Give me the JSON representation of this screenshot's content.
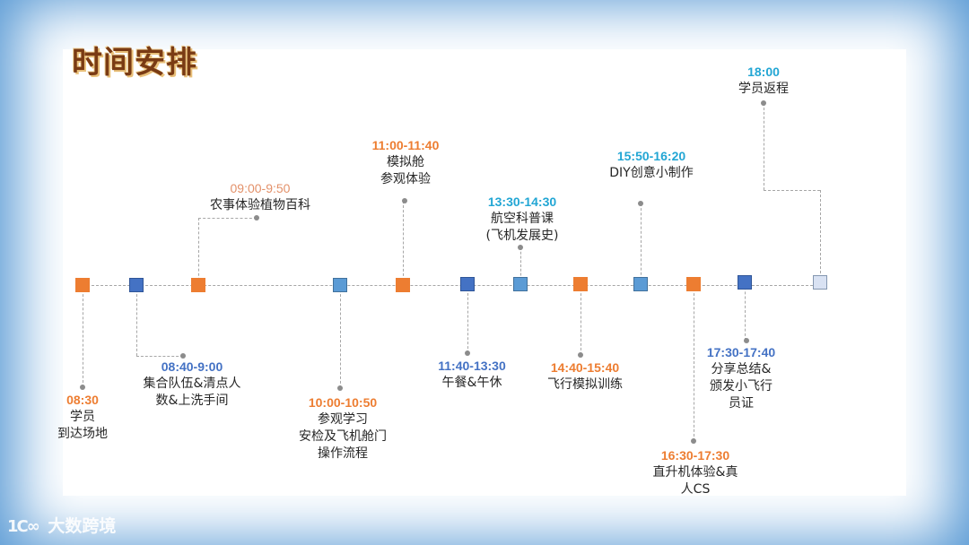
{
  "title": "时间安排",
  "watermark": {
    "mark": "1C∞",
    "text": "大数跨境"
  },
  "colors": {
    "orange": "#ed7d31",
    "dark_blue": "#4472c4",
    "light_blue": "#5b9bd5",
    "cyan": "#22a6d4",
    "tan": "#e3916a",
    "frame": "#5b9bd5"
  },
  "events": [
    {
      "time": "08:30",
      "lines": [
        "学员",
        "到达场地"
      ],
      "time_color": "orange",
      "marker": "orange"
    },
    {
      "time": "08:40-9:00",
      "lines": [
        "集合队伍&清点人",
        "数&上洗手间"
      ],
      "time_color": "dark_blue",
      "marker": "dark_blue"
    },
    {
      "time": "09:00-9:50",
      "lines": [
        "农事体验植物百科"
      ],
      "time_color": "tan",
      "marker": "orange"
    },
    {
      "time": "10:00-10:50",
      "lines": [
        "参观学习",
        "安检及飞机舱门",
        "操作流程"
      ],
      "time_color": "orange",
      "marker": "light_blue"
    },
    {
      "time": "11:00-11:40",
      "lines": [
        "模拟舱",
        "参观体验"
      ],
      "time_color": "orange",
      "marker": "orange"
    },
    {
      "time": "11:40-13:30",
      "lines": [
        "午餐&午休"
      ],
      "time_color": "dark_blue",
      "marker": "dark_blue"
    },
    {
      "time": "13:30-14:30",
      "lines": [
        "航空科普课",
        "(飞机发展史)"
      ],
      "time_color": "cyan",
      "marker": "light_blue"
    },
    {
      "time": "14:40-15:40",
      "lines": [
        "飞行模拟训练"
      ],
      "time_color": "orange",
      "marker": "orange"
    },
    {
      "time": "15:50-16:20",
      "lines": [
        "DIY创意小制作"
      ],
      "time_color": "cyan",
      "marker": "light_blue"
    },
    {
      "time": "16:30-17:30",
      "lines": [
        "直升机体验&真",
        "人CS"
      ],
      "time_color": "orange",
      "marker": "orange"
    },
    {
      "time": "17:30-17:40",
      "lines": [
        "分享总结&",
        "颁发小飞行",
        "员证"
      ],
      "time_color": "dark_blue",
      "marker": "dark_blue"
    },
    {
      "time": "18:00",
      "lines": [
        "学员返程"
      ],
      "time_color": "cyan",
      "marker": "outline"
    }
  ]
}
